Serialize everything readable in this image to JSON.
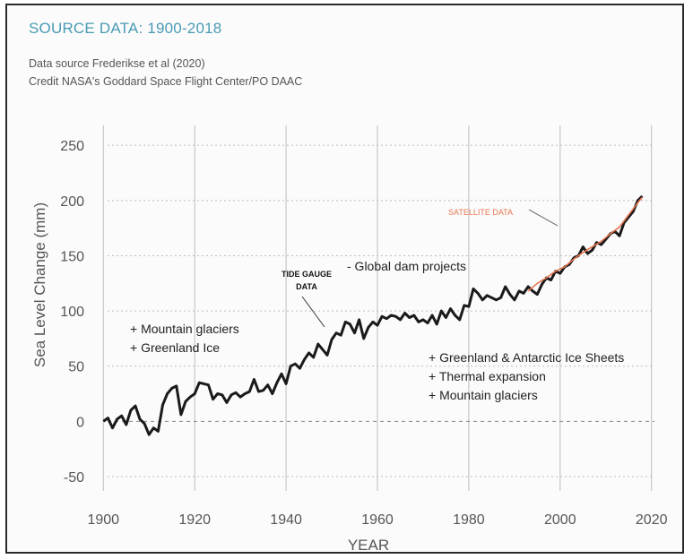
{
  "header": {
    "title": "SOURCE DATA: 1900-2018",
    "credit_line_1": "Data source  Frederikse et al  (2020)",
    "credit_line_2": "Credit  NASA's Goddard Space Flight Center/PO DAAC"
  },
  "colors": {
    "title": "#4a9bb4",
    "series_tide": "#1a1a1a",
    "series_satellite": "#e8764f",
    "grid": "#bdbdbd",
    "zero_line": "#888888"
  },
  "chart_data": {
    "type": "line",
    "title": "SOURCE DATA: 1900-2018",
    "xlabel": "YEAR",
    "ylabel": "Sea Level Change (mm)",
    "xlim": [
      1897,
      2023
    ],
    "ylim": [
      -63,
      268
    ],
    "x_ticks": [
      1900,
      1920,
      1940,
      1960,
      1980,
      2000,
      2020
    ],
    "y_ticks": [
      -50,
      0,
      50,
      100,
      150,
      200,
      250
    ],
    "grid": "on",
    "series": [
      {
        "name": "TIDE GAUGE DATA",
        "x": [
          1900,
          1901,
          1902,
          1903,
          1904,
          1905,
          1906,
          1907,
          1908,
          1909,
          1910,
          1911,
          1912,
          1913,
          1914,
          1915,
          1916,
          1917,
          1918,
          1919,
          1920,
          1921,
          1922,
          1923,
          1924,
          1925,
          1926,
          1927,
          1928,
          1929,
          1930,
          1931,
          1932,
          1933,
          1934,
          1935,
          1936,
          1937,
          1938,
          1939,
          1940,
          1941,
          1942,
          1943,
          1944,
          1945,
          1946,
          1947,
          1948,
          1949,
          1950,
          1951,
          1952,
          1953,
          1954,
          1955,
          1956,
          1957,
          1958,
          1959,
          1960,
          1961,
          1962,
          1963,
          1964,
          1965,
          1966,
          1967,
          1968,
          1969,
          1970,
          1971,
          1972,
          1973,
          1974,
          1975,
          1976,
          1977,
          1978,
          1979,
          1980,
          1981,
          1982,
          1983,
          1984,
          1985,
          1986,
          1987,
          1988,
          1989,
          1990,
          1991,
          1992,
          1993,
          1994,
          1995,
          1996,
          1997,
          1998,
          1999,
          2000,
          2001,
          2002,
          2003,
          2004,
          2005,
          2006,
          2007,
          2008,
          2009,
          2010,
          2011,
          2012,
          2013,
          2014,
          2015,
          2016,
          2017,
          2018
        ],
        "y": [
          0,
          3,
          -6,
          2,
          5,
          -3,
          10,
          14,
          2,
          -2,
          -12,
          -6,
          -9,
          15,
          25,
          30,
          32,
          6,
          18,
          22,
          25,
          35,
          34,
          33,
          20,
          25,
          24,
          17,
          24,
          26,
          22,
          25,
          27,
          38,
          27,
          28,
          33,
          25,
          35,
          43,
          34,
          50,
          52,
          48,
          56,
          62,
          58,
          70,
          65,
          60,
          74,
          80,
          78,
          90,
          88,
          80,
          92,
          75,
          85,
          90,
          87,
          95,
          93,
          96,
          95,
          92,
          98,
          94,
          96,
          90,
          92,
          89,
          96,
          88,
          100,
          94,
          102,
          96,
          92,
          105,
          104,
          120,
          116,
          110,
          114,
          112,
          110,
          112,
          122,
          115,
          110,
          118,
          116,
          122,
          118,
          115,
          124,
          130,
          128,
          136,
          134,
          140,
          142,
          148,
          150,
          158,
          152,
          155,
          162,
          160,
          165,
          170,
          172,
          168,
          180,
          185,
          190,
          200,
          204
        ]
      },
      {
        "name": "SATELLITE DATA",
        "x": [
          1993,
          1995,
          1997,
          1999,
          2001,
          2003,
          2005,
          2007,
          2009,
          2011,
          2013,
          2015,
          2017,
          2018
        ],
        "y": [
          118,
          125,
          130,
          136,
          140,
          147,
          153,
          158,
          163,
          170,
          176,
          187,
          198,
          203
        ]
      }
    ],
    "annotations": [
      "TIDE GAUGE DATA",
      "SATELLITE DATA",
      "- Global dam projects",
      "+ Mountain glaciers",
      "+ Greenland Ice",
      "+ Greenland & Antarctic Ice Sheets",
      "+ Thermal expansion",
      "+ Mountain glaciers"
    ]
  }
}
